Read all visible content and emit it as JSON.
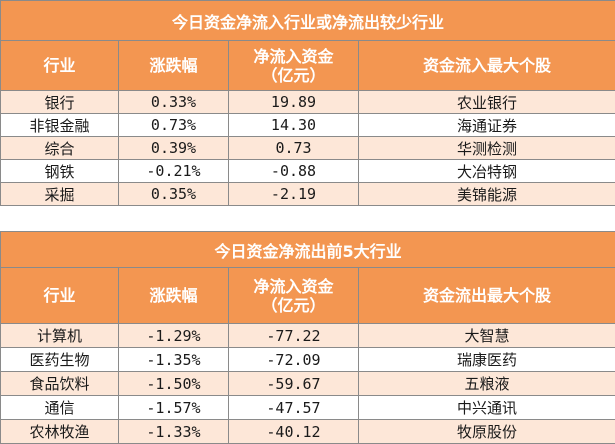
{
  "inflow_table": {
    "title": "今日资金净流入行业或净流出较少行业",
    "headers": [
      "行业",
      "涨跌幅",
      "净流入资金\n（亿元）",
      "资金流入最大个股"
    ],
    "rows": [
      [
        "银行",
        "0.33%",
        "19.89",
        "农业银行"
      ],
      [
        "非银金融",
        "0.73%",
        "14.30",
        "海通证券"
      ],
      [
        "综合",
        "0.39%",
        "0.73",
        "华测检测"
      ],
      [
        "钢铁",
        "-0.21%",
        "-0.88",
        "大冶特钢"
      ],
      [
        "采掘",
        "0.35%",
        "-2.19",
        "美锦能源"
      ]
    ]
  },
  "outflow_table": {
    "title": "今日资金净流出前5大行业",
    "headers": [
      "行业",
      "涨跌幅",
      "净流入资金\n（亿元）",
      "资金流出最大个股"
    ],
    "rows": [
      [
        "计算机",
        "-1.29%",
        "-77.22",
        "大智慧"
      ],
      [
        "医药生物",
        "-1.35%",
        "-72.09",
        "瑞康医药"
      ],
      [
        "食品饮料",
        "-1.50%",
        "-59.67",
        "五粮液"
      ],
      [
        "通信",
        "-1.57%",
        "-47.57",
        "中兴通讯"
      ],
      [
        "农林牧渔",
        "-1.33%",
        "-40.12",
        "牧原股份"
      ]
    ]
  },
  "colors": {
    "header_bg": "#f39651",
    "band_bg": "#fde7d8",
    "grid": "#8a8a8a"
  }
}
